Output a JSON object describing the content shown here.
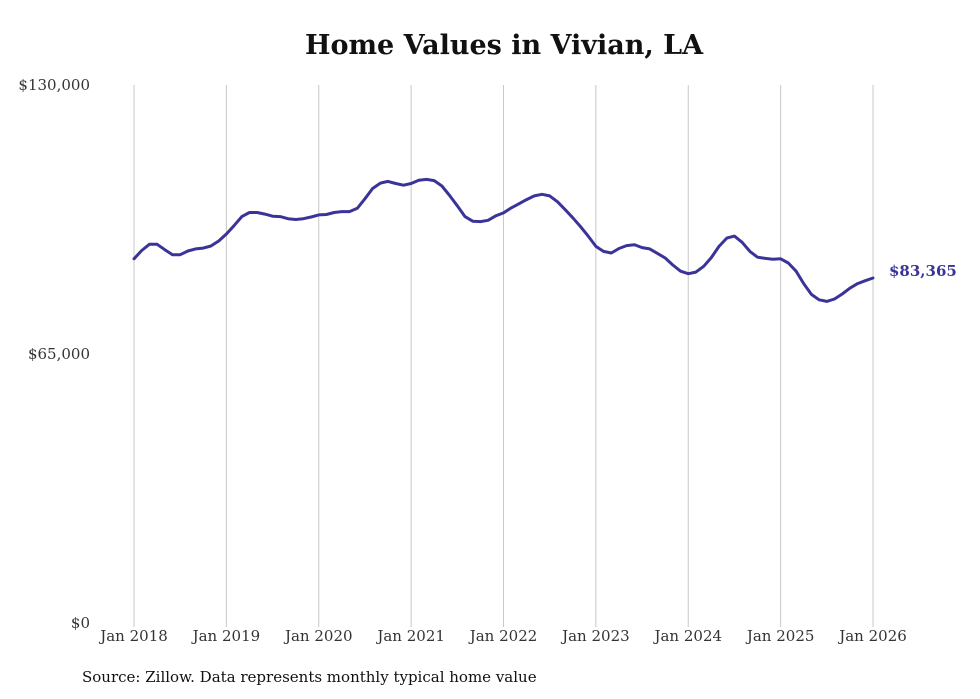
{
  "chart_data": {
    "type": "line",
    "title": "Home Values in Vivian, LA",
    "xlabel": "",
    "ylabel": "",
    "ylim": [
      0,
      130000
    ],
    "y_ticks": [
      {
        "value": 0,
        "label": "$0"
      },
      {
        "value": 65000,
        "label": "$65,000"
      },
      {
        "value": 130000,
        "label": "$130,000"
      }
    ],
    "x_ticks": [
      {
        "value": 2018,
        "label": "Jan 2018"
      },
      {
        "value": 2019,
        "label": "Jan 2019"
      },
      {
        "value": 2020,
        "label": "Jan 2020"
      },
      {
        "value": 2021,
        "label": "Jan 2021"
      },
      {
        "value": 2022,
        "label": "Jan 2022"
      },
      {
        "value": 2023,
        "label": "Jan 2023"
      },
      {
        "value": 2024,
        "label": "Jan 2024"
      },
      {
        "value": 2025,
        "label": "Jan 2025"
      },
      {
        "value": 2026,
        "label": "Jan 2026"
      }
    ],
    "xlim": [
      2018,
      2026
    ],
    "grid": "vertical",
    "series": [
      {
        "name": "Typical home value",
        "color": "#3a3499",
        "end_label": "$83,365",
        "x": [
          2018.0,
          2018.083,
          2018.167,
          2018.25,
          2018.333,
          2018.417,
          2018.5,
          2018.583,
          2018.667,
          2018.75,
          2018.833,
          2018.917,
          2019.0,
          2019.083,
          2019.167,
          2019.25,
          2019.333,
          2019.417,
          2019.5,
          2019.583,
          2019.667,
          2019.75,
          2019.833,
          2019.917,
          2020.0,
          2020.083,
          2020.167,
          2020.25,
          2020.333,
          2020.417,
          2020.5,
          2020.583,
          2020.667,
          2020.75,
          2020.833,
          2020.917,
          2021.0,
          2021.083,
          2021.167,
          2021.25,
          2021.333,
          2021.417,
          2021.5,
          2021.583,
          2021.667,
          2021.75,
          2021.833,
          2021.917,
          2022.0,
          2022.083,
          2022.167,
          2022.25,
          2022.333,
          2022.417,
          2022.5,
          2022.583,
          2022.667,
          2022.75,
          2022.833,
          2022.917,
          2023.0,
          2023.083,
          2023.167,
          2023.25,
          2023.333,
          2023.417,
          2023.5,
          2023.583,
          2023.667,
          2023.75,
          2023.833,
          2023.917,
          2024.0,
          2024.083,
          2024.167,
          2024.25,
          2024.333,
          2024.417,
          2024.5,
          2024.583,
          2024.667,
          2024.75,
          2024.833,
          2024.917,
          2025.0,
          2025.083,
          2025.167,
          2025.25,
          2025.333,
          2025.417,
          2025.5,
          2025.583,
          2025.667,
          2025.75,
          2025.833,
          2025.917,
          2026.0
        ],
        "values": [
          88000,
          90000,
          91500,
          91500,
          90200,
          89000,
          89000,
          89900,
          90400,
          90600,
          91100,
          92300,
          94000,
          96000,
          98200,
          99200,
          99200,
          98800,
          98300,
          98200,
          97700,
          97500,
          97700,
          98100,
          98600,
          98700,
          99200,
          99400,
          99400,
          100200,
          102500,
          105000,
          106300,
          106700,
          106200,
          105800,
          106200,
          107000,
          107200,
          106900,
          105600,
          103300,
          100800,
          98200,
          97100,
          97000,
          97300,
          98400,
          99100,
          100300,
          101300,
          102300,
          103200,
          103600,
          103200,
          101800,
          99900,
          97900,
          95800,
          93500,
          91000,
          89800,
          89400,
          90500,
          91200,
          91400,
          90700,
          90400,
          89300,
          88200,
          86500,
          85000,
          84400,
          84800,
          86200,
          88300,
          91000,
          93000,
          93500,
          92000,
          89800,
          88400,
          88100,
          87900,
          88000,
          87000,
          85000,
          82000,
          79400,
          78100,
          77700,
          78300,
          79500,
          80900,
          82000,
          82700,
          83365
        ]
      }
    ]
  },
  "source_note": "Source: Zillow. Data represents monthly typical home value"
}
